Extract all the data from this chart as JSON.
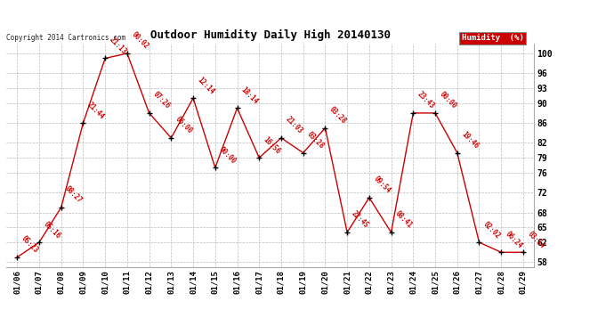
{
  "title": "Outdoor Humidity Daily High 20140130",
  "copyright": "Copyright 2014 Cartronics.com",
  "legend_label": "Humidity  (%)",
  "ylim": [
    57,
    102
  ],
  "yticks": [
    58,
    62,
    65,
    68,
    72,
    76,
    79,
    82,
    86,
    90,
    93,
    96,
    100
  ],
  "background_color": "#ffffff",
  "grid_color": "#bbbbbb",
  "line_color": "#cc0000",
  "marker_color": "#000000",
  "dates": [
    "01/06",
    "01/07",
    "01/08",
    "01/09",
    "01/10",
    "01/11",
    "01/12",
    "01/13",
    "01/14",
    "01/15",
    "01/16",
    "01/17",
    "01/18",
    "01/19",
    "01/20",
    "01/21",
    "01/22",
    "01/23",
    "01/24",
    "01/25",
    "01/26",
    "01/27",
    "01/28",
    "01/29"
  ],
  "values": [
    59,
    62,
    69,
    86,
    99,
    100,
    88,
    83,
    91,
    77,
    89,
    79,
    83,
    80,
    85,
    64,
    71,
    64,
    88,
    88,
    80,
    62,
    60,
    60
  ],
  "time_labels": [
    "05:23",
    "05:16",
    "08:27",
    "21:44",
    "21:13",
    "00:02",
    "07:26",
    "06:00",
    "12:14",
    "00:00",
    "18:14",
    "16:56",
    "21:03",
    "03:28",
    "03:28",
    "22:45",
    "09:54",
    "08:41",
    "23:43",
    "00:00",
    "19:46",
    "02:02",
    "06:24",
    "03:54"
  ]
}
